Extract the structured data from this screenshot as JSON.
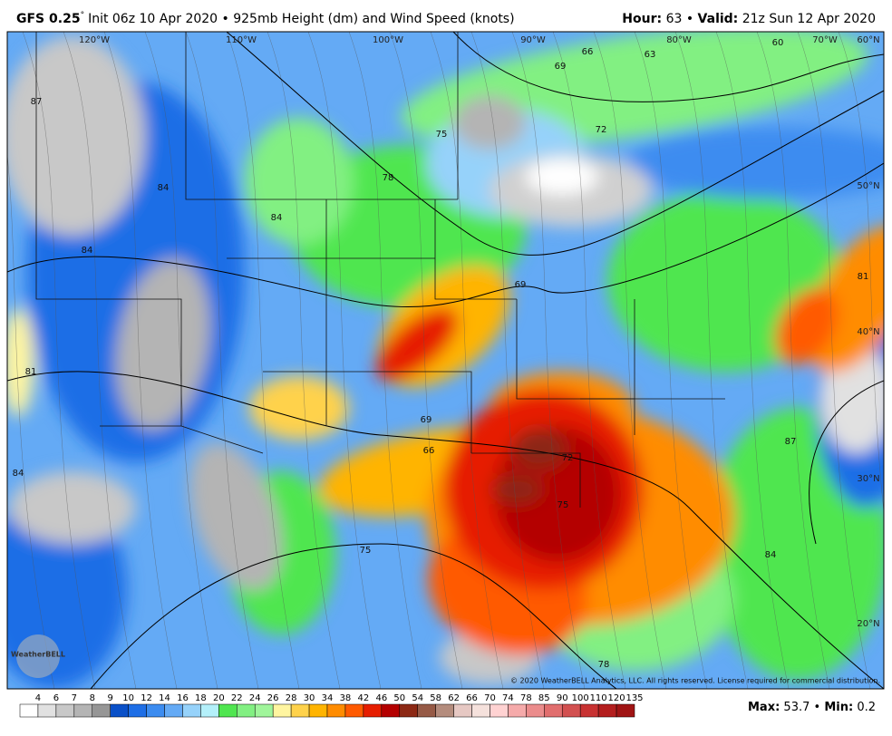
{
  "header": {
    "model": "GFS 0.25",
    "degree": "°",
    "description": "Init 06z 10 Apr 2020 • 925mb Height (dm) and Wind Speed (knots)",
    "hour_label": "Hour:",
    "hour": "63 •",
    "valid_label": "Valid:",
    "valid": "21z Sun 12 Apr 2020"
  },
  "map": {
    "longitude_labels": [
      "120°W",
      "110°W",
      "100°W",
      "90°W",
      "80°W",
      "70°W"
    ],
    "latitude_labels": [
      "60°N",
      "50°N",
      "40°N",
      "30°N",
      "20°N"
    ],
    "contour_labels": [
      "87",
      "84",
      "84",
      "84",
      "78",
      "75",
      "72",
      "69",
      "66",
      "63",
      "60",
      "69",
      "81",
      "81",
      "84",
      "69",
      "66",
      "72",
      "75",
      "75",
      "78",
      "84",
      "87"
    ],
    "copyright": "© 2020 WeatherBELL Analytics, LLC. All rights reserved. License required for commercial distribution.",
    "logo": "WeatherBELL"
  },
  "legend": {
    "labels": [
      "4",
      "6",
      "7",
      "8",
      "9",
      "10",
      "12",
      "14",
      "16",
      "18",
      "20",
      "22",
      "24",
      "26",
      "28",
      "30",
      "34",
      "38",
      "42",
      "46",
      "50",
      "54",
      "58",
      "62",
      "66",
      "70",
      "74",
      "78",
      "85",
      "90",
      "100",
      "110",
      "120",
      "135"
    ],
    "colors": [
      "#ffffff",
      "#e1e1e1",
      "#c8c8c8",
      "#b4b4b4",
      "#969696",
      "#0a50c8",
      "#1e6ee6",
      "#3c8cf0",
      "#64aaf5",
      "#96d2fa",
      "#b4f0fa",
      "#50e650",
      "#82f082",
      "#a0f59b",
      "#fff5a0",
      "#ffd24b",
      "#ffb400",
      "#ff8c00",
      "#ff5a00",
      "#e61e00",
      "#b40000",
      "#8c2814",
      "#965a46",
      "#b48c7d",
      "#e6c8c3",
      "#f5e1dc",
      "#ffd2d2",
      "#f5aaaa",
      "#eb8c8c",
      "#e16e6e",
      "#d25050",
      "#c83232",
      "#b41e1e",
      "#a01414"
    ]
  },
  "footer": {
    "max_label": "Max:",
    "max": "53.7 •",
    "min_label": "Min:",
    "min": "0.2"
  }
}
